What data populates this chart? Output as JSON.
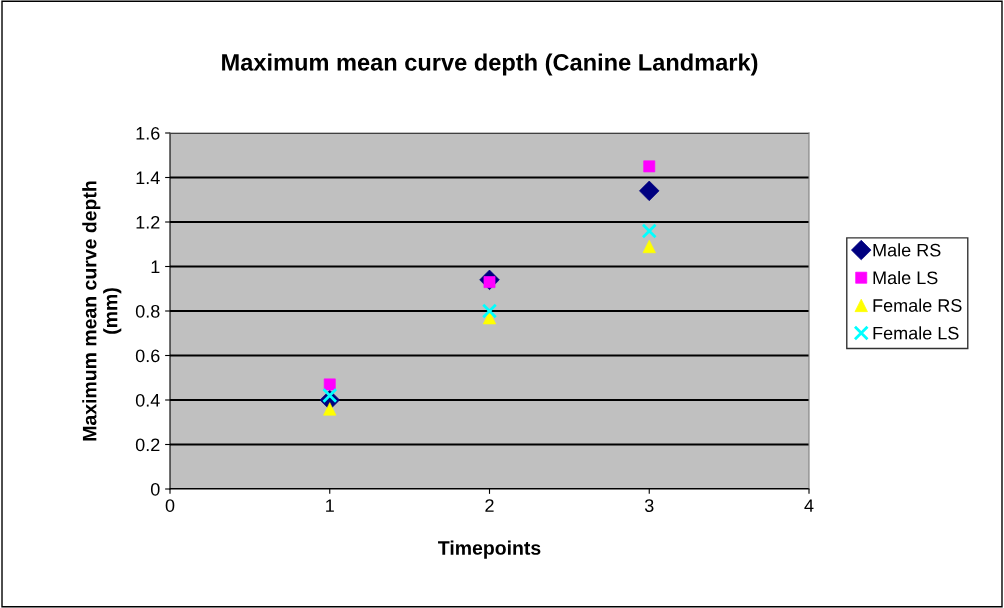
{
  "chart_data": {
    "type": "scatter",
    "title": "Maximum mean curve depth (Canine Landmark)",
    "xlabel": "Timepoints",
    "ylabel": "Maximum mean curve depth\n(mm)",
    "x": [
      1,
      2,
      3
    ],
    "series": [
      {
        "name": "Male RS",
        "color": "#000080",
        "marker": "diamond",
        "values": [
          0.4,
          0.94,
          1.34
        ]
      },
      {
        "name": "Male LS",
        "color": "#ff00ff",
        "marker": "square",
        "values": [
          0.47,
          0.93,
          1.45
        ]
      },
      {
        "name": "Female RS",
        "color": "#ffff00",
        "marker": "triangle",
        "values": [
          0.36,
          0.77,
          1.09
        ]
      },
      {
        "name": "Female LS",
        "color": "#00ffff",
        "marker": "cross",
        "values": [
          0.42,
          0.8,
          1.16
        ]
      }
    ],
    "xlim": [
      0,
      4
    ],
    "xticks": [
      0,
      1,
      2,
      3,
      4
    ],
    "ylim": [
      0,
      1.6
    ],
    "yticks": [
      0,
      0.2,
      0.4,
      0.6,
      0.8,
      1,
      1.2,
      1.4,
      1.6
    ],
    "grid": "y",
    "legend": "right"
  }
}
